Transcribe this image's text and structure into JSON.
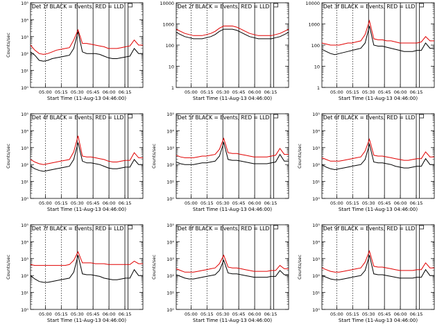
{
  "colors": {
    "events": "#000000",
    "lld": "#e00000",
    "axis": "#000000",
    "marker": "#000000"
  },
  "chart_data": [
    {
      "type": "line",
      "panel": "Det 1f",
      "title": "Det 1f BLACK = Events, RED = LLD",
      "xlabel": "Start Time (11-Aug-13 04:46:00)",
      "ylabel": "Counts/sec",
      "yscale": "log",
      "ylim_exp": [
        0,
        5
      ],
      "ytick_labels": [
        "10⁰",
        "10¹",
        "10²",
        "10³",
        "10⁴",
        "10⁵"
      ],
      "xticks": [
        "05:00",
        "05:15",
        "05:30",
        "05:45",
        "06:00",
        "06:15"
      ],
      "events_log": [
        2.1,
        1.9,
        1.6,
        1.55,
        1.6,
        1.7,
        1.75,
        1.8,
        1.85,
        1.9,
        2.3,
        3.3,
        2.1,
        2.0,
        2.0,
        2.0,
        1.95,
        1.85,
        1.75,
        1.7,
        1.7,
        1.75,
        1.8,
        1.85,
        2.3,
        2.0,
        2.0
      ],
      "lld_log": [
        2.5,
        2.2,
        2.0,
        1.95,
        2.0,
        2.1,
        2.2,
        2.25,
        2.3,
        2.35,
        2.8,
        3.4,
        2.6,
        2.6,
        2.55,
        2.5,
        2.45,
        2.4,
        2.3,
        2.3,
        2.3,
        2.35,
        2.4,
        2.45,
        2.8,
        2.5,
        2.5
      ]
    },
    {
      "type": "line",
      "panel": "Det 2f",
      "title": "Det 2f BLACK = Events, RED = LLD",
      "xlabel": "Start Time (11-Aug-13 04:46:00)",
      "ylabel": "",
      "yscale": "log",
      "ylim_exp": [
        0,
        4
      ],
      "ytick_labels": [
        "1",
        "10",
        "100",
        "1000",
        "10000"
      ],
      "xticks": [
        "05:00",
        "05:15",
        "05:30",
        "05:45",
        "06:00",
        "06:15"
      ],
      "events_log": [
        2.6,
        2.5,
        2.4,
        2.35,
        2.3,
        2.3,
        2.3,
        2.35,
        2.4,
        2.5,
        2.65,
        2.75,
        2.75,
        2.75,
        2.7,
        2.6,
        2.5,
        2.4,
        2.35,
        2.3,
        2.3,
        2.3,
        2.3,
        2.35,
        2.4,
        2.5,
        2.6
      ],
      "lld_log": [
        2.75,
        2.65,
        2.55,
        2.5,
        2.45,
        2.45,
        2.45,
        2.5,
        2.55,
        2.65,
        2.8,
        2.9,
        2.9,
        2.9,
        2.85,
        2.75,
        2.65,
        2.55,
        2.5,
        2.45,
        2.45,
        2.45,
        2.45,
        2.5,
        2.55,
        2.65,
        2.75
      ]
    },
    {
      "type": "line",
      "panel": "Det 3f",
      "title": "Det 3f BLACK = Events, RED = LLD",
      "xlabel": "Start Time (11-Aug-13 04:46:00)",
      "ylabel": "",
      "yscale": "log",
      "ylim_exp": [
        0,
        4
      ],
      "ytick_labels": [
        "1",
        "10",
        "100",
        "1000",
        "10000"
      ],
      "xticks": [
        "05:00",
        "05:15",
        "05:30",
        "05:45",
        "06:00",
        "06:15"
      ],
      "events_log": [
        1.8,
        1.7,
        1.6,
        1.55,
        1.6,
        1.65,
        1.7,
        1.75,
        1.8,
        1.85,
        2.1,
        2.9,
        2.0,
        1.95,
        1.95,
        1.9,
        1.85,
        1.8,
        1.75,
        1.7,
        1.7,
        1.7,
        1.75,
        1.75,
        2.1,
        1.85,
        1.85
      ],
      "lld_log": [
        2.1,
        2.05,
        2.0,
        2.0,
        2.0,
        2.05,
        2.1,
        2.1,
        2.15,
        2.2,
        2.5,
        3.15,
        2.3,
        2.25,
        2.25,
        2.2,
        2.2,
        2.15,
        2.1,
        2.1,
        2.1,
        2.1,
        2.1,
        2.15,
        2.4,
        2.2,
        2.2
      ]
    },
    {
      "type": "line",
      "panel": "Det 4f",
      "title": "Det 4f BLACK = Events, RED = LLD",
      "xlabel": "Start Time (11-Aug-13 04:46:00)",
      "ylabel": "Counts/sec",
      "yscale": "log",
      "ylim_exp": [
        0,
        5
      ],
      "ytick_labels": [
        "10⁰",
        "10¹",
        "10²",
        "10³",
        "10⁴",
        "10⁵"
      ],
      "xticks": [
        "05:00",
        "05:15",
        "05:30",
        "05:45",
        "06:00",
        "06:15"
      ],
      "events_log": [
        1.9,
        1.75,
        1.65,
        1.6,
        1.65,
        1.7,
        1.75,
        1.8,
        1.85,
        1.9,
        2.3,
        3.3,
        2.2,
        2.1,
        2.1,
        2.05,
        2.0,
        1.9,
        1.8,
        1.75,
        1.75,
        1.8,
        1.85,
        1.85,
        2.3,
        2.0,
        2.0
      ],
      "lld_log": [
        2.3,
        2.15,
        2.05,
        2.0,
        2.05,
        2.1,
        2.15,
        2.2,
        2.25,
        2.3,
        2.75,
        3.7,
        2.5,
        2.45,
        2.45,
        2.4,
        2.35,
        2.3,
        2.2,
        2.15,
        2.15,
        2.2,
        2.25,
        2.25,
        2.7,
        2.4,
        2.4
      ]
    },
    {
      "type": "line",
      "panel": "Det 5f",
      "title": "Det 5f BLACK = Events, RED = LLD",
      "xlabel": "Start Time (11-Aug-13 04:46:00)",
      "ylabel": "Counts/sec",
      "yscale": "log",
      "ylim_exp": [
        0,
        5
      ],
      "ytick_labels": [
        "10⁰",
        "10¹",
        "10²",
        "10³",
        "10⁴",
        "10⁵"
      ],
      "xticks": [
        "05:00",
        "05:15",
        "05:30",
        "05:45",
        "06:00",
        "06:15"
      ],
      "events_log": [
        2.15,
        2.05,
        2.0,
        2.0,
        2.0,
        2.05,
        2.1,
        2.1,
        2.15,
        2.2,
        2.5,
        3.3,
        2.3,
        2.25,
        2.25,
        2.2,
        2.15,
        2.1,
        2.05,
        2.05,
        2.05,
        2.05,
        2.1,
        2.15,
        2.6,
        2.2,
        2.2
      ],
      "lld_log": [
        2.55,
        2.45,
        2.4,
        2.4,
        2.4,
        2.45,
        2.5,
        2.5,
        2.55,
        2.6,
        2.9,
        3.55,
        2.7,
        2.65,
        2.65,
        2.6,
        2.55,
        2.5,
        2.45,
        2.45,
        2.45,
        2.45,
        2.5,
        2.55,
        2.95,
        2.6,
        2.6
      ]
    },
    {
      "type": "line",
      "panel": "Det 6f",
      "title": "Det 6f BLACK = Events, RED = LLD",
      "xlabel": "Start Time (11-Aug-13 04:46:00)",
      "ylabel": "Counts/sec",
      "yscale": "log",
      "ylim_exp": [
        0,
        5
      ],
      "ytick_labels": [
        "10⁰",
        "10¹",
        "10²",
        "10³",
        "10⁴",
        "10⁵"
      ],
      "xticks": [
        "05:00",
        "05:15",
        "05:30",
        "05:45",
        "06:00",
        "06:15"
      ],
      "events_log": [
        2.0,
        1.85,
        1.75,
        1.7,
        1.75,
        1.8,
        1.85,
        1.9,
        1.95,
        2.0,
        2.3,
        3.2,
        2.15,
        2.1,
        2.1,
        2.05,
        2.0,
        1.9,
        1.85,
        1.8,
        1.8,
        1.85,
        1.9,
        1.9,
        2.35,
        2.0,
        2.0
      ],
      "lld_log": [
        2.4,
        2.3,
        2.2,
        2.2,
        2.2,
        2.25,
        2.3,
        2.35,
        2.4,
        2.45,
        2.8,
        3.5,
        2.55,
        2.5,
        2.5,
        2.45,
        2.4,
        2.35,
        2.3,
        2.25,
        2.25,
        2.3,
        2.35,
        2.35,
        2.75,
        2.45,
        2.45
      ]
    },
    {
      "type": "line",
      "panel": "Det 7f",
      "title": "Det 7f BLACK = Events, RED = LLD",
      "xlabel": "Start Time (11-Aug-13 04:46:00)",
      "ylabel": "Counts/sec",
      "yscale": "log",
      "ylim_exp": [
        0,
        5
      ],
      "ytick_labels": [
        "10⁰",
        "10¹",
        "10²",
        "10³",
        "10⁴",
        "10⁵"
      ],
      "xticks": [
        "05:00",
        "05:15",
        "05:30",
        "05:45",
        "06:00",
        "06:15"
      ],
      "events_log": [
        2.0,
        1.8,
        1.65,
        1.6,
        1.6,
        1.65,
        1.7,
        1.75,
        1.8,
        1.85,
        2.2,
        3.2,
        2.1,
        2.05,
        2.05,
        2.0,
        1.95,
        1.85,
        1.8,
        1.75,
        1.75,
        1.8,
        1.85,
        1.85,
        2.35,
        2.0,
        2.0
      ],
      "lld_log": [
        2.65,
        2.6,
        2.6,
        2.6,
        2.6,
        2.6,
        2.6,
        2.6,
        2.6,
        2.65,
        2.9,
        3.4,
        2.75,
        2.75,
        2.75,
        2.7,
        2.7,
        2.7,
        2.65,
        2.65,
        2.65,
        2.65,
        2.65,
        2.65,
        2.85,
        2.7,
        2.7
      ]
    },
    {
      "type": "line",
      "panel": "Det 8f",
      "title": "Det 8f BLACK = Events, RED = LLD",
      "xlabel": "Start Time (11-Aug-13 04:46:00)",
      "ylabel": "Counts/sec",
      "yscale": "log",
      "ylim_exp": [
        0,
        5
      ],
      "ytick_labels": [
        "10⁰",
        "10¹",
        "10²",
        "10³",
        "10⁴",
        "10⁵"
      ],
      "xticks": [
        "05:00",
        "05:15",
        "05:30",
        "05:45",
        "06:00",
        "06:15"
      ],
      "events_log": [
        2.05,
        1.95,
        1.85,
        1.8,
        1.8,
        1.85,
        1.9,
        1.95,
        2.0,
        2.05,
        2.3,
        2.9,
        2.15,
        2.1,
        2.1,
        2.05,
        2.0,
        1.95,
        1.9,
        1.9,
        1.9,
        1.9,
        1.95,
        1.95,
        2.3,
        2.05,
        2.05
      ],
      "lld_log": [
        2.4,
        2.3,
        2.2,
        2.2,
        2.2,
        2.25,
        2.3,
        2.35,
        2.4,
        2.45,
        2.7,
        3.2,
        2.5,
        2.45,
        2.45,
        2.4,
        2.35,
        2.3,
        2.25,
        2.25,
        2.25,
        2.25,
        2.3,
        2.3,
        2.6,
        2.4,
        2.4
      ]
    },
    {
      "type": "line",
      "panel": "Det 9f",
      "title": "Det 9f BLACK = Events, RED = LLD",
      "xlabel": "Start Time (11-Aug-13 04:46:00)",
      "ylabel": "Counts/sec",
      "yscale": "log",
      "ylim_exp": [
        0,
        5
      ],
      "ytick_labels": [
        "10⁰",
        "10¹",
        "10²",
        "10³",
        "10⁴",
        "10⁵"
      ],
      "xticks": [
        "05:00",
        "05:15",
        "05:30",
        "05:45",
        "06:00",
        "06:15"
      ],
      "events_log": [
        2.0,
        1.9,
        1.8,
        1.75,
        1.75,
        1.8,
        1.85,
        1.9,
        1.95,
        2.0,
        2.3,
        3.2,
        2.1,
        2.05,
        2.05,
        2.0,
        1.95,
        1.9,
        1.85,
        1.85,
        1.85,
        1.85,
        1.9,
        1.9,
        2.35,
        2.0,
        2.0
      ],
      "lld_log": [
        2.45,
        2.35,
        2.25,
        2.2,
        2.2,
        2.25,
        2.3,
        2.35,
        2.4,
        2.45,
        2.8,
        3.45,
        2.55,
        2.5,
        2.5,
        2.45,
        2.4,
        2.35,
        2.3,
        2.3,
        2.3,
        2.3,
        2.35,
        2.35,
        2.75,
        2.45,
        2.45
      ]
    }
  ]
}
